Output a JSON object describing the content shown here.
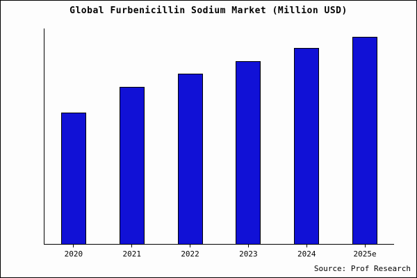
{
  "title": "Global Furbenicillin Sodium Market (Million USD)",
  "source": "Source: Prof Research",
  "colors": {
    "bar_fill": "#1111d6",
    "bar_edge": "#000000",
    "axis": "#000000",
    "background": "#fdfdfd"
  },
  "chart_data": {
    "type": "bar",
    "title": "Global Furbenicillin Sodium Market (Million USD)",
    "categories": [
      "2020",
      "2021",
      "2022",
      "2023",
      "2024",
      "2025e"
    ],
    "values": [
      61,
      73,
      79,
      85,
      91,
      96
    ],
    "xlabel": "",
    "ylabel": "",
    "ylim": [
      0,
      100
    ],
    "grid": false,
    "legend": false,
    "y_axis_labels_visible": false,
    "annotation": "Source: Prof Research"
  }
}
